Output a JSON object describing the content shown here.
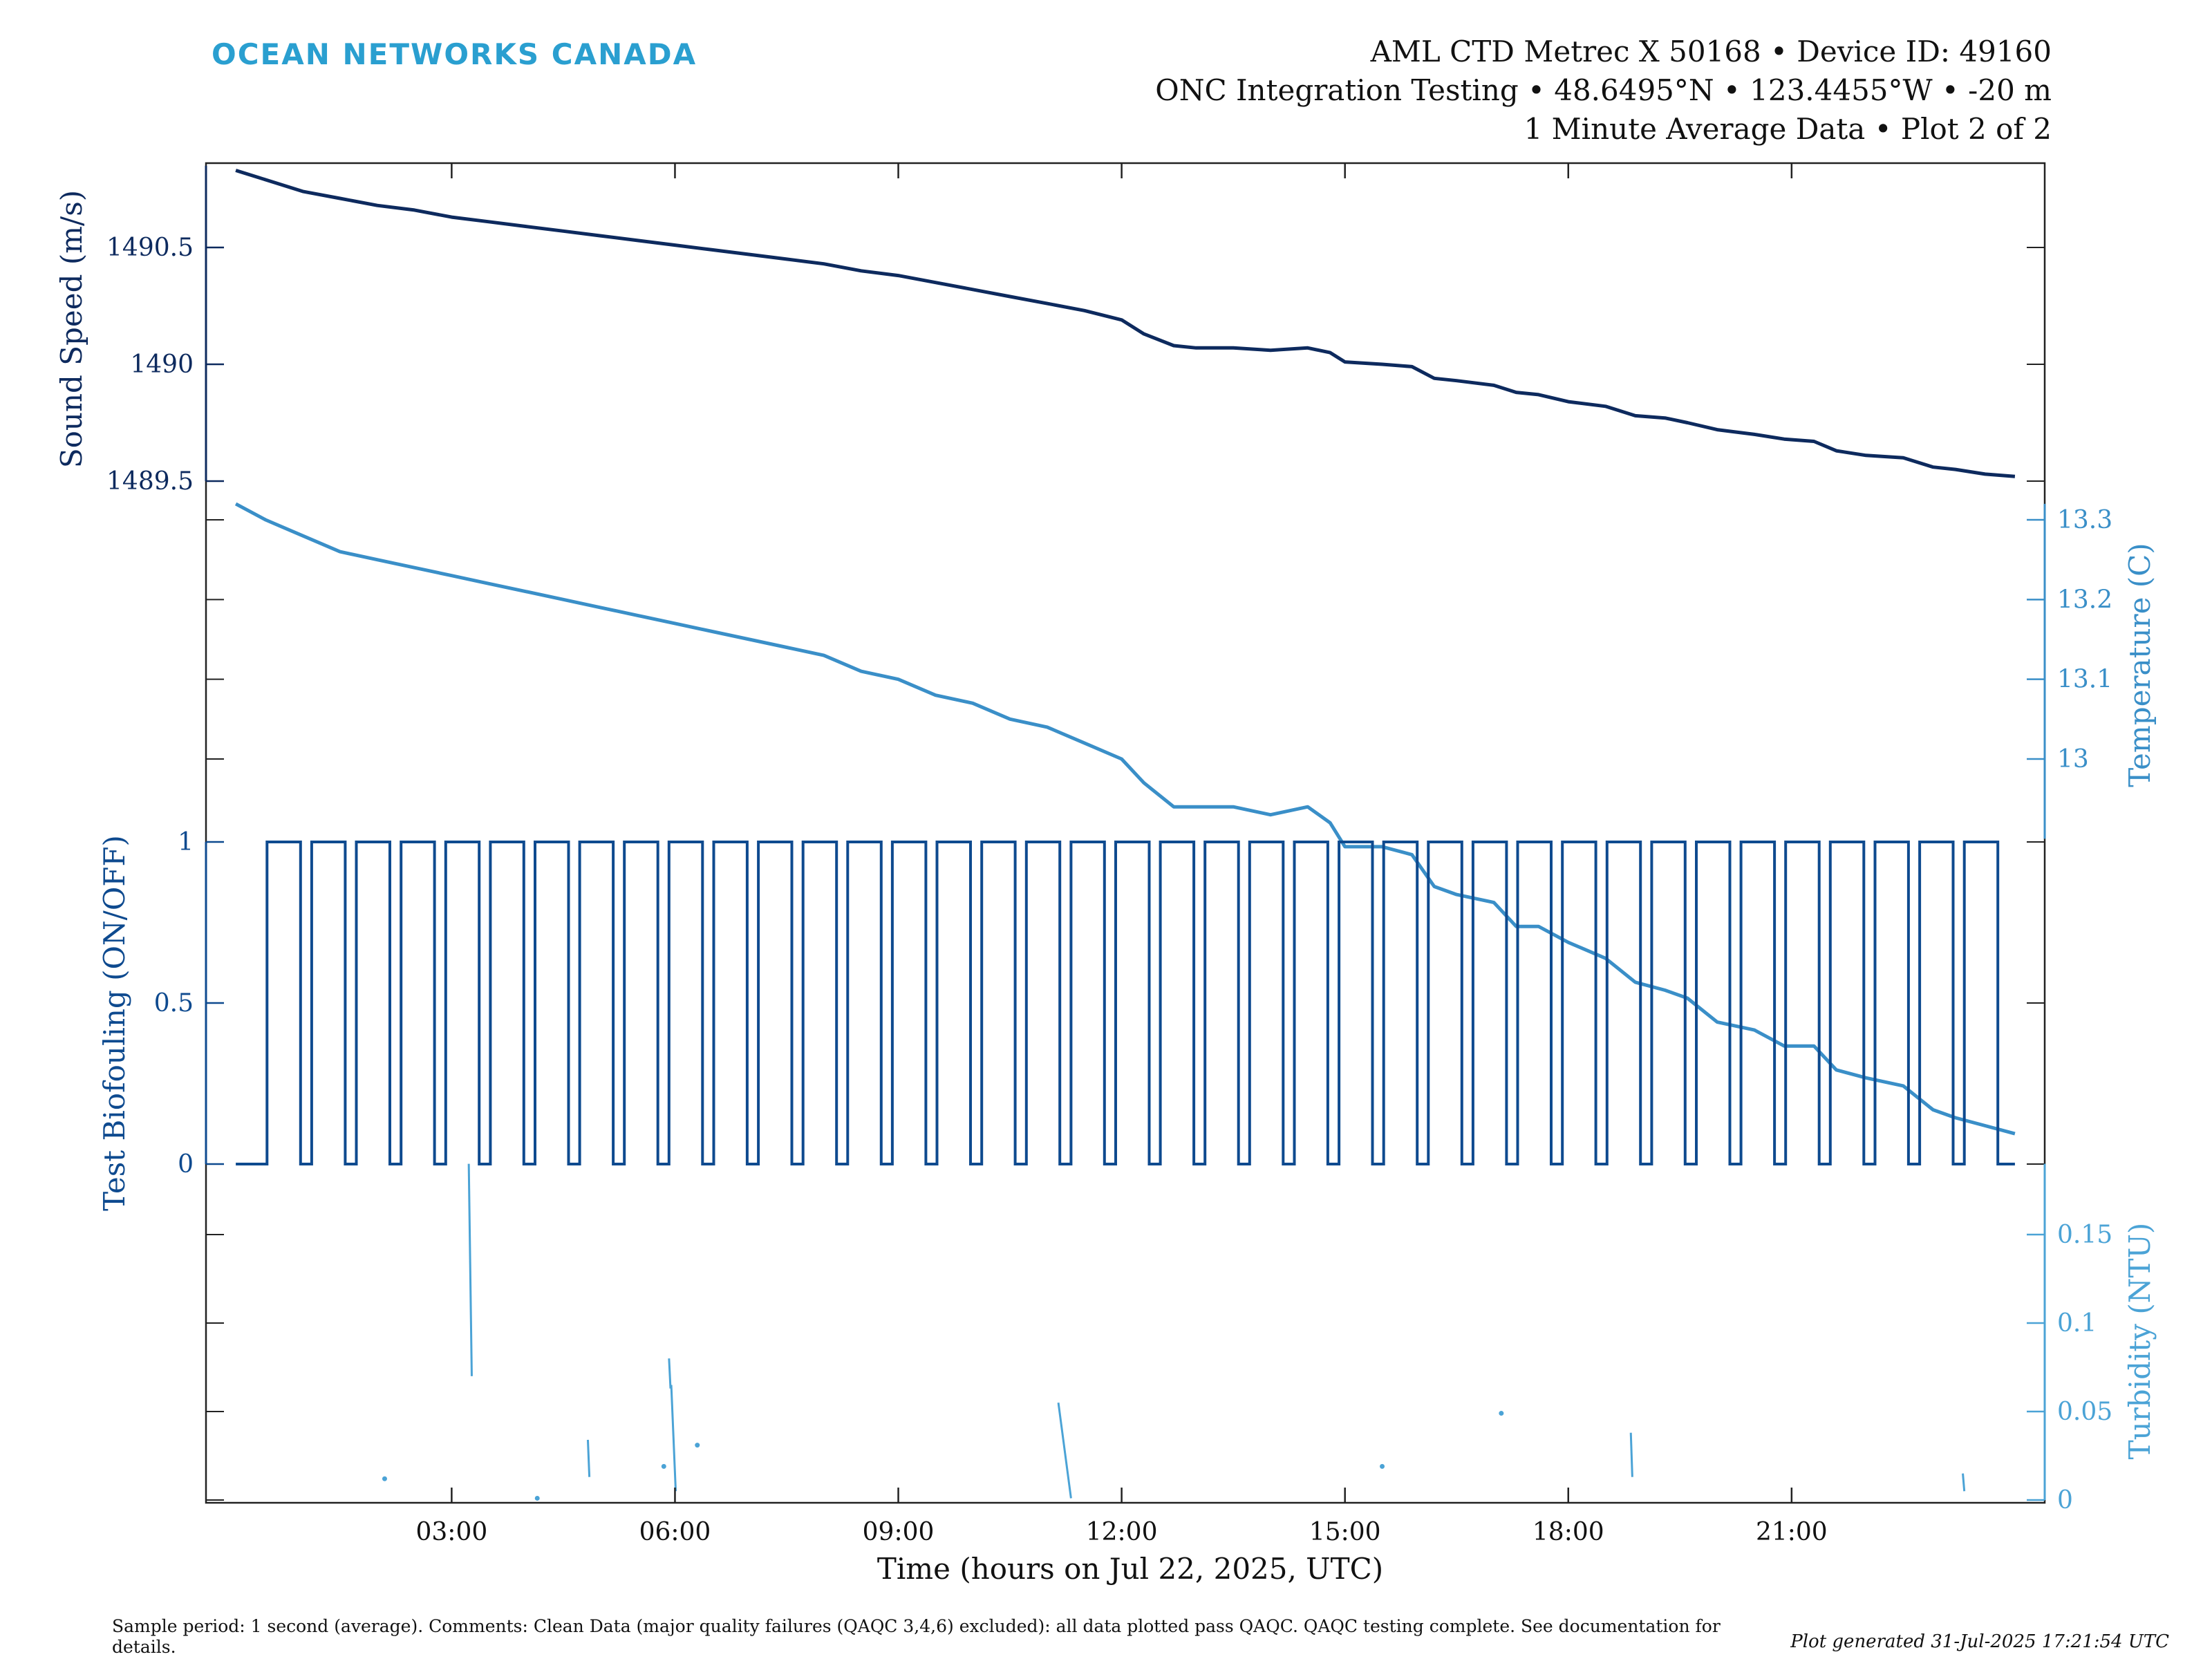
{
  "header": {
    "brand": "OCEAN NETWORKS CANADA",
    "line1": "AML CTD Metrec X 50168 • Device ID: 49160",
    "line2": "ONC Integration Testing • 48.6495°N • 123.4455°W • -20 m",
    "line3": "1 Minute Average Data • Plot 2 of 2"
  },
  "footer": {
    "sample_text": "Sample period: 1 second (average). Comments: Clean Data (major quality failures (QAQC 3,4,6) excluded): all data plotted pass QAQC. QAQC testing complete. See documentation for details.",
    "generated": "Plot generated 31-Jul-2025 17:21:54 UTC"
  },
  "colors": {
    "sound_speed": "#0d2a5e",
    "temperature": "#3a8fc8",
    "biofouling": "#0e4a8f",
    "turbidity": "#4ba3d6",
    "axis": "#222222"
  },
  "chart_data": [
    {
      "type": "line",
      "name": "sound-speed",
      "ylabel": "Sound Speed (m/s)",
      "axis_side": "left",
      "yticks": [
        1489.5,
        1490,
        1490.5
      ],
      "ytick_labels": [
        "1489.5",
        "1490",
        "1490.5"
      ],
      "ylim": [
        1489.5,
        1490.85
      ],
      "x_unit": "hours on Jul 22, 2025",
      "x": [
        0.1,
        0.5,
        1.0,
        1.5,
        2.0,
        2.5,
        3.0,
        3.5,
        4.0,
        4.5,
        5.0,
        5.5,
        6.0,
        6.5,
        7.0,
        7.5,
        8.0,
        8.5,
        9.0,
        9.5,
        10.0,
        10.5,
        11.0,
        11.5,
        12.0,
        12.3,
        12.7,
        13.0,
        13.5,
        14.0,
        14.5,
        14.8,
        15.0,
        15.5,
        15.9,
        16.2,
        16.5,
        17.0,
        17.3,
        17.6,
        18.0,
        18.5,
        18.9,
        19.3,
        19.6,
        20.0,
        20.5,
        20.9,
        21.3,
        21.6,
        22.0,
        22.5,
        22.9,
        23.2,
        23.6,
        24.0
      ],
      "y": [
        1490.83,
        1490.79,
        1490.74,
        1490.71,
        1490.68,
        1490.66,
        1490.63,
        1490.61,
        1490.59,
        1490.57,
        1490.55,
        1490.53,
        1490.51,
        1490.49,
        1490.47,
        1490.45,
        1490.43,
        1490.4,
        1490.38,
        1490.35,
        1490.32,
        1490.29,
        1490.26,
        1490.23,
        1490.19,
        1490.13,
        1490.08,
        1490.07,
        1490.07,
        1490.06,
        1490.07,
        1490.05,
        1490.01,
        1490.0,
        1489.99,
        1489.94,
        1489.93,
        1489.91,
        1489.88,
        1489.87,
        1489.84,
        1489.82,
        1489.78,
        1489.77,
        1489.75,
        1489.72,
        1489.7,
        1489.68,
        1489.67,
        1489.63,
        1489.61,
        1489.6,
        1489.56,
        1489.55,
        1489.53,
        1489.52
      ]
    },
    {
      "type": "line",
      "name": "temperature",
      "ylabel": "Temperature (C)",
      "axis_side": "right",
      "yticks": [
        13.0,
        13.1,
        13.2,
        13.3
      ],
      "ytick_labels": [
        "13",
        "13.1",
        "13.2",
        "13.3"
      ],
      "ylim": [
        12.9,
        13.32
      ],
      "x_unit": "hours on Jul 22, 2025",
      "x": [
        0.1,
        0.5,
        1.0,
        1.5,
        2.0,
        2.5,
        3.0,
        3.5,
        4.0,
        4.5,
        5.0,
        5.5,
        6.0,
        6.5,
        7.0,
        7.5,
        8.0,
        8.5,
        9.0,
        9.5,
        10.0,
        10.5,
        11.0,
        11.5,
        12.0,
        12.3,
        12.7,
        13.0,
        13.5,
        14.0,
        14.5,
        14.8,
        15.0,
        15.5,
        15.9,
        16.2,
        16.5,
        17.0,
        17.3,
        17.6,
        18.0,
        18.5,
        18.9,
        19.3,
        19.6,
        20.0,
        20.5,
        20.9,
        21.3,
        21.6,
        22.0,
        22.5,
        22.9,
        23.2,
        23.6,
        24.0
      ],
      "y": [
        13.32,
        13.3,
        13.28,
        13.26,
        13.25,
        13.24,
        13.23,
        13.22,
        13.21,
        13.2,
        13.19,
        13.18,
        13.17,
        13.16,
        13.15,
        13.14,
        13.13,
        13.11,
        13.1,
        13.08,
        13.07,
        13.05,
        13.04,
        13.02,
        13.0,
        12.97,
        12.94,
        12.94,
        12.94,
        12.93,
        12.94,
        12.92,
        12.89,
        12.89,
        12.88,
        12.84,
        12.83,
        12.82,
        12.79,
        12.79,
        12.77,
        12.75,
        12.72,
        12.71,
        12.7,
        12.67,
        12.66,
        12.64,
        12.64,
        12.61,
        12.6,
        12.59,
        12.56,
        12.55,
        12.54,
        12.53
      ]
    },
    {
      "type": "line",
      "name": "test-biofouling",
      "ylabel": "Test Biofouling (ON/OFF)",
      "axis_side": "left",
      "yticks": [
        0,
        0.5,
        1
      ],
      "ytick_labels": [
        "0",
        "0.5",
        "1"
      ],
      "ylim": [
        0,
        1
      ],
      "x_unit": "hours on Jul 22, 2025",
      "pattern": "square wave alternating 0 and 1, ON for about 27 of every 36 minutes",
      "on_start_hours": [
        0.52,
        1.12,
        1.72,
        2.32,
        2.92,
        3.52,
        4.12,
        4.72,
        5.32,
        5.92,
        6.52,
        7.12,
        7.72,
        8.32,
        8.92,
        9.52,
        10.12,
        10.72,
        11.32,
        11.92,
        12.52,
        13.12,
        13.72,
        14.32,
        14.92,
        15.52,
        16.12,
        16.72,
        17.32,
        17.92,
        18.52,
        19.12,
        19.72,
        20.32,
        20.92,
        21.52,
        22.12,
        22.72,
        23.32
      ],
      "on_duration_hours": 0.45,
      "x_start": 0.1,
      "x_end": 24.0
    },
    {
      "type": "scatter",
      "name": "turbidity",
      "ylabel": "Turbidity (NTU)",
      "axis_side": "right",
      "yticks": [
        0,
        0.05,
        0.1,
        0.15
      ],
      "ytick_labels": [
        "0",
        "0.05",
        "0.1",
        "0.15"
      ],
      "ylim": [
        0,
        0.19
      ],
      "x_unit": "hours on Jul 22, 2025",
      "segments": [
        {
          "x0": 3.23,
          "y0": 0.19,
          "x1": 3.27,
          "y1": 0.07
        },
        {
          "x0": 4.83,
          "y0": 0.034,
          "x1": 4.85,
          "y1": 0.013
        },
        {
          "x0": 5.92,
          "y0": 0.08,
          "x1": 5.94,
          "y1": 0.063
        },
        {
          "x0": 5.95,
          "y0": 0.065,
          "x1": 6.01,
          "y1": 0.005
        },
        {
          "x0": 11.15,
          "y0": 0.055,
          "x1": 11.32,
          "y1": 0.001
        },
        {
          "x0": 18.84,
          "y0": 0.038,
          "x1": 18.86,
          "y1": 0.013
        },
        {
          "x0": 23.3,
          "y0": 0.015,
          "x1": 23.32,
          "y1": 0.005
        }
      ],
      "points": [
        {
          "x": 2.1,
          "y": 0.012
        },
        {
          "x": 4.15,
          "y": 0.001
        },
        {
          "x": 5.85,
          "y": 0.019
        },
        {
          "x": 6.3,
          "y": 0.031
        },
        {
          "x": 15.5,
          "y": 0.019
        },
        {
          "x": 17.1,
          "y": 0.049
        }
      ]
    }
  ],
  "x_axis": {
    "label": "Time (hours on Jul 22, 2025, UTC)",
    "ticks": [
      3,
      6,
      9,
      12,
      15,
      18,
      21
    ],
    "tick_labels": [
      "03:00",
      "06:00",
      "09:00",
      "12:00",
      "15:00",
      "18:00",
      "21:00"
    ],
    "xlim": [
      -0.3,
      24.4
    ]
  }
}
